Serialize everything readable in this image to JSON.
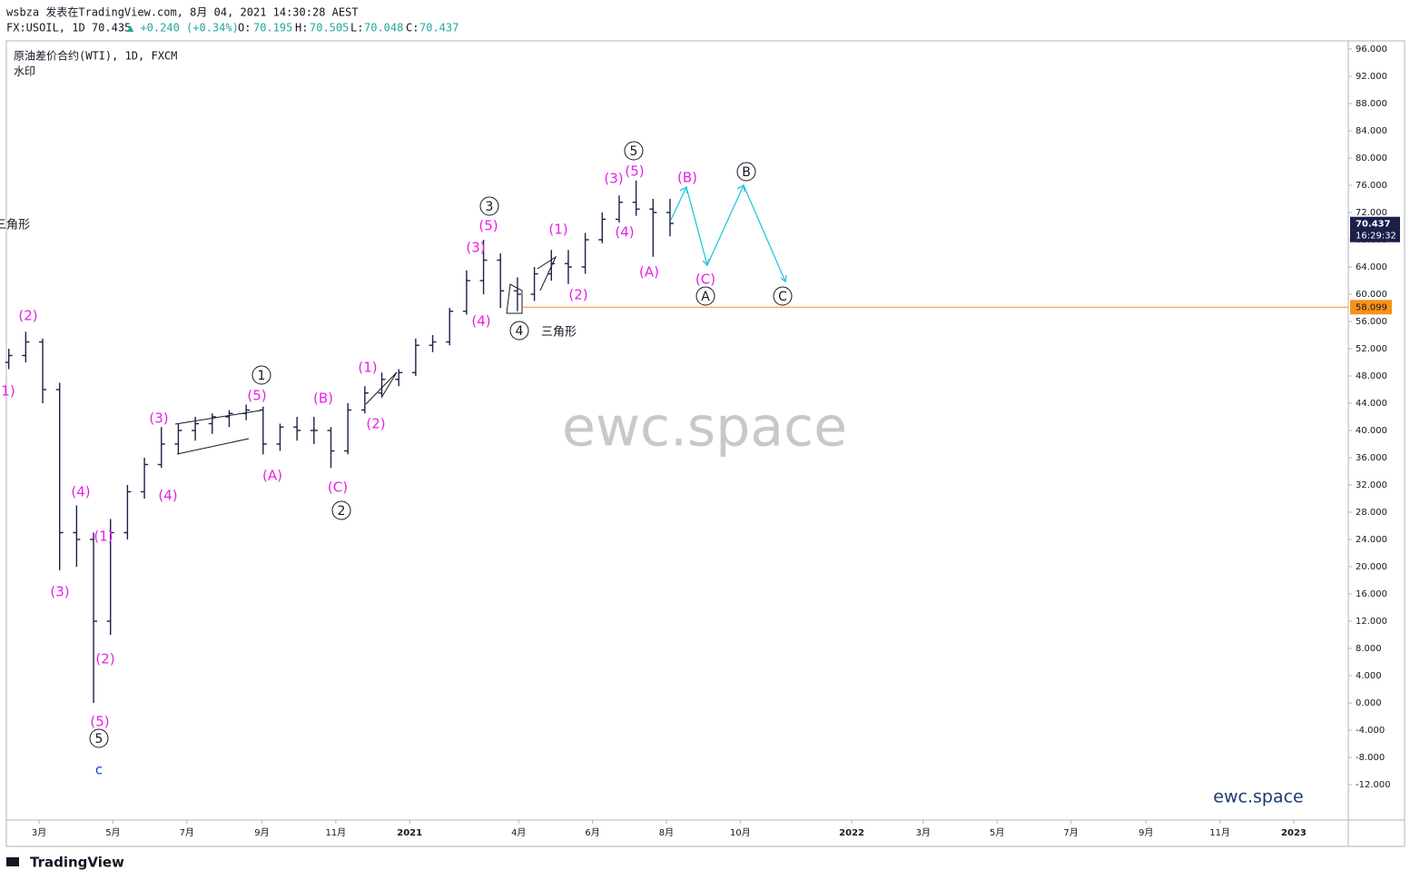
{
  "header": {
    "line1": "wsbza 发表在TradingView.com, 8月 04, 2021 14:30:28 AEST",
    "symbol": "FX:USOIL, 1D 70.435",
    "change": "▲ +0.240 (+0.34%)",
    "open_label": "O:",
    "open": "70.195",
    "high_label": "H:",
    "high": "70.505",
    "low_label": "L:",
    "low": "70.048",
    "close_label": "C:",
    "close": "70.437"
  },
  "legend": {
    "name": "原油差价合约(WTI), 1D, FXCM",
    "watermark_label": "水印"
  },
  "watermark": "ewc.space",
  "brand_corner": "ewc.space",
  "logo": "TradingView",
  "chart_data": {
    "type": "ohlc",
    "color": "#1c1f4a",
    "x": [
      "2020-02-05",
      "2020-02-19",
      "2020-03-04",
      "2020-03-18",
      "2020-04-01",
      "2020-04-15",
      "2020-04-29",
      "2020-05-13",
      "2020-05-27",
      "2020-06-10",
      "2020-06-24",
      "2020-07-08",
      "2020-07-22",
      "2020-08-05",
      "2020-08-19",
      "2020-09-02",
      "2020-09-16",
      "2020-09-30",
      "2020-10-14",
      "2020-10-28",
      "2020-11-11",
      "2020-11-25",
      "2020-12-09",
      "2020-12-23",
      "2021-01-06",
      "2021-01-20",
      "2021-02-03",
      "2021-02-17",
      "2021-03-03",
      "2021-03-17",
      "2021-03-31",
      "2021-04-14",
      "2021-04-28",
      "2021-05-12",
      "2021-05-26",
      "2021-06-09",
      "2021-06-23",
      "2021-07-07",
      "2021-07-21",
      "2021-08-04"
    ],
    "open": [
      50,
      51,
      53,
      46,
      25,
      24,
      12,
      25,
      31,
      35,
      38,
      40,
      41,
      42,
      42.5,
      43,
      38,
      40.5,
      40,
      40,
      37,
      43,
      45.5,
      47.5,
      48.5,
      52.5,
      53,
      57.5,
      62,
      65,
      60.5,
      60,
      63,
      64.5,
      64,
      68,
      71,
      73.5,
      72.5,
      72
    ],
    "high": [
      52,
      54.5,
      53.5,
      47,
      29,
      25,
      27,
      32,
      36,
      40.5,
      41,
      42,
      42.5,
      43,
      43.8,
      43.5,
      41,
      42,
      42,
      40.5,
      44,
      46.5,
      48.5,
      49,
      53.5,
      54,
      58,
      63.5,
      68,
      66,
      62.5,
      64,
      66.5,
      66.5,
      69,
      72,
      74.5,
      76.7,
      74,
      74
    ],
    "low": [
      49,
      50,
      44,
      19.5,
      20,
      0,
      10,
      24,
      30,
      34.5,
      36.5,
      38.5,
      39.5,
      40.5,
      41.5,
      36.5,
      37,
      38.5,
      38,
      34.5,
      36.5,
      42.5,
      45,
      46.5,
      48,
      51.5,
      52.5,
      57,
      60,
      58,
      57.5,
      59,
      62,
      61.5,
      63,
      67.5,
      70.5,
      71.5,
      65.5,
      68.5
    ],
    "close": [
      51,
      53,
      46,
      25,
      24,
      12,
      25,
      31,
      35,
      38,
      40,
      41,
      42,
      42.5,
      43,
      38,
      40.5,
      40,
      40,
      37,
      43,
      45.5,
      47.5,
      48.5,
      52.5,
      53,
      57.5,
      62,
      65,
      60.5,
      60,
      63,
      64.5,
      64,
      68,
      71,
      73.5,
      72.5,
      72,
      70.4
    ],
    "xlim": [
      "2020-02-03",
      "2023-02-15"
    ],
    "xticks": [
      {
        "value": "2020-03-01",
        "label": "3月"
      },
      {
        "value": "2020-05-01",
        "label": "5月"
      },
      {
        "value": "2020-07-01",
        "label": "7月"
      },
      {
        "value": "2020-09-01",
        "label": "9月"
      },
      {
        "value": "2020-11-01",
        "label": "11月"
      },
      {
        "value": "2021-01-01",
        "label": "2021"
      },
      {
        "value": "2021-04-01",
        "label": "4月"
      },
      {
        "value": "2021-06-01",
        "label": "6月"
      },
      {
        "value": "2021-08-01",
        "label": "8月"
      },
      {
        "value": "2021-10-01",
        "label": "10月"
      },
      {
        "value": "2022-01-01",
        "label": "2022"
      },
      {
        "value": "2022-03-01",
        "label": "3月"
      },
      {
        "value": "2022-05-01",
        "label": "5月"
      },
      {
        "value": "2022-07-01",
        "label": "7月"
      },
      {
        "value": "2022-09-01",
        "label": "9月"
      },
      {
        "value": "2022-11-01",
        "label": "11月"
      },
      {
        "value": "2023-01-01",
        "label": "2023"
      }
    ],
    "ylim": [
      -17.2,
      97.2
    ],
    "yticks": [
      {
        "value": 96,
        "label": "96.000"
      },
      {
        "value": 92,
        "label": "92.000"
      },
      {
        "value": 88,
        "label": "88.000"
      },
      {
        "value": 84,
        "label": "84.000"
      },
      {
        "value": 80,
        "label": "80.000"
      },
      {
        "value": 76,
        "label": "76.000"
      },
      {
        "value": 72,
        "label": "72.000"
      },
      {
        "value": 68,
        "label": "68.000"
      },
      {
        "value": 64,
        "label": "64.000"
      },
      {
        "value": 60,
        "label": "60.000"
      },
      {
        "value": 56,
        "label": "56.000"
      },
      {
        "value": 52,
        "label": "52.000"
      },
      {
        "value": 48,
        "label": "48.000"
      },
      {
        "value": 44,
        "label": "44.000"
      },
      {
        "value": 40,
        "label": "40.000"
      },
      {
        "value": 36,
        "label": "36.000"
      },
      {
        "value": 32,
        "label": "32.000"
      },
      {
        "value": 28,
        "label": "28.000"
      },
      {
        "value": 24,
        "label": "24.000"
      },
      {
        "value": 20,
        "label": "20.000"
      },
      {
        "value": 16,
        "label": "16.000"
      },
      {
        "value": 12,
        "label": "12.000"
      },
      {
        "value": 8,
        "label": "8.000"
      },
      {
        "value": 4,
        "label": "4.000"
      },
      {
        "value": 0,
        "label": "0.000"
      },
      {
        "value": -4,
        "label": "-4.000"
      },
      {
        "value": -8,
        "label": "-8.000"
      },
      {
        "value": -12,
        "label": "-12.000"
      }
    ],
    "grid": false,
    "price_line": 58.099,
    "price_line_color": "#f7931a",
    "last_price": 70.437,
    "countdown": "16:29:32",
    "wave_labels": [
      "(2)",
      "1)",
      "(4)",
      "(3)",
      "(1)",
      "(2)",
      "(5)",
      "(3)",
      "(4)",
      "(5)",
      "(A)",
      "(B)",
      "(C)",
      "(1)",
      "(2)",
      "(3)",
      "(5)",
      "(4)",
      "(1)",
      "(2)",
      "(3)",
      "(5)",
      "(4)",
      "(A)",
      "(B)",
      "(C)"
    ],
    "wave_color": "#e91ee8",
    "circle_labels": [
      "5",
      "1",
      "2",
      "3",
      "4",
      "5",
      "A",
      "B",
      "C"
    ],
    "notes": [
      "三角形",
      "三角形",
      "c"
    ]
  }
}
